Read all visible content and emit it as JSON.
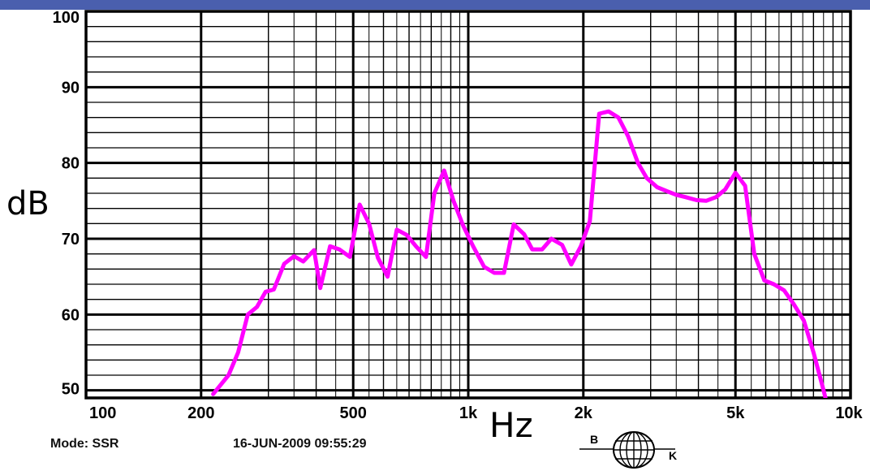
{
  "chart_data": {
    "type": "line",
    "xscale": "log",
    "xlim": [
      100,
      10000
    ],
    "ylim": [
      49,
      100
    ],
    "ylabel": "dB",
    "xlabel": "Hz",
    "grid": true,
    "x_ticks": [
      {
        "value": 100,
        "label": "100"
      },
      {
        "value": 200,
        "label": "200"
      },
      {
        "value": 500,
        "label": "500"
      },
      {
        "value": 1000,
        "label": "1k"
      },
      {
        "value": 2000,
        "label": "2k"
      },
      {
        "value": 5000,
        "label": "5k"
      },
      {
        "value": 10000,
        "label": "10k"
      }
    ],
    "y_ticks": [
      {
        "value": 50,
        "label": "50"
      },
      {
        "value": 60,
        "label": "60"
      },
      {
        "value": 70,
        "label": "70"
      },
      {
        "value": 80,
        "label": "80"
      },
      {
        "value": 90,
        "label": "90"
      },
      {
        "value": 100,
        "label": "100"
      }
    ],
    "series": [
      {
        "color": "#ff00ff",
        "x": [
          215,
          236,
          250,
          265,
          280,
          295,
          310,
          330,
          350,
          370,
          395,
          410,
          435,
          460,
          490,
          520,
          550,
          580,
          615,
          650,
          690,
          730,
          775,
          815,
          865,
          915,
          970,
          1030,
          1100,
          1170,
          1240,
          1315,
          1400,
          1470,
          1560,
          1650,
          1760,
          1860,
          1970,
          2080,
          2200,
          2330,
          2470,
          2620,
          2780,
          2930,
          3120,
          3300,
          3500,
          3700,
          3950,
          4190,
          4450,
          4700,
          5000,
          5300,
          5600,
          5950,
          6300,
          6700,
          7100,
          7550,
          8000,
          8500,
          9000
        ],
        "y": [
          49.5,
          52,
          55,
          60,
          61,
          63,
          63.3,
          66.7,
          67.7,
          67,
          68.5,
          63.5,
          69,
          68.6,
          67.6,
          74.5,
          72,
          67.5,
          65,
          71.2,
          70.5,
          69,
          67.6,
          76,
          79,
          75,
          71.7,
          69,
          66.3,
          65.5,
          65.5,
          71.9,
          70.6,
          68.6,
          68.6,
          70,
          69.2,
          66.6,
          69,
          72.3,
          86.5,
          86.8,
          86,
          83.5,
          80,
          78,
          76.8,
          76.3,
          75.8,
          75.5,
          75.1,
          75,
          75.5,
          76.5,
          78.7,
          77,
          68,
          64.5,
          64,
          63.2,
          61.4,
          59.2,
          55,
          50,
          45
        ]
      }
    ]
  },
  "footer": {
    "mode": "Mode: SSR",
    "datetime": "16-JUN-2009 09:55:29"
  },
  "logo": {
    "letter_left": "B",
    "letter_right": "K"
  }
}
